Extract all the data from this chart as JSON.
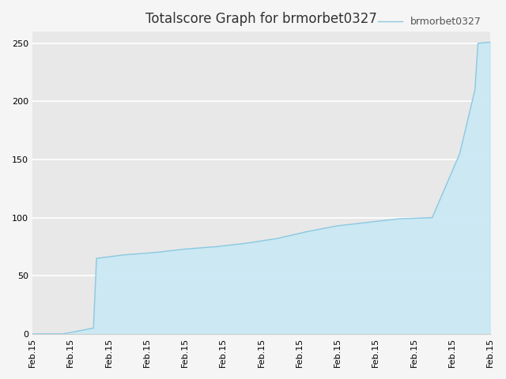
{
  "title": "Totalscore Graph for brmorbet0327",
  "legend_label": "brmorbet0327",
  "line_color": "#8cc8e0",
  "fill_color": "#c8e8f5",
  "background_color": "#f5f5f5",
  "plot_bg_color": "#e8e8e8",
  "grid_color": "#ffffff",
  "ylim": [
    0,
    260
  ],
  "yticks": [
    0,
    50,
    100,
    150,
    200,
    250
  ],
  "x_values": [
    0,
    1,
    2,
    2.1,
    3,
    4,
    5,
    6,
    7,
    8,
    9,
    10,
    11,
    12,
    13,
    13.1,
    14,
    14.5,
    14.6,
    15
  ],
  "y_data": [
    0,
    0,
    5,
    65,
    68,
    70,
    73,
    75,
    78,
    82,
    88,
    93,
    96,
    99,
    100,
    100,
    155,
    210,
    250,
    251
  ],
  "num_xticks": 13,
  "xtick_label": "Feb.15",
  "title_fontsize": 12,
  "tick_fontsize": 8,
  "legend_fontsize": 9
}
